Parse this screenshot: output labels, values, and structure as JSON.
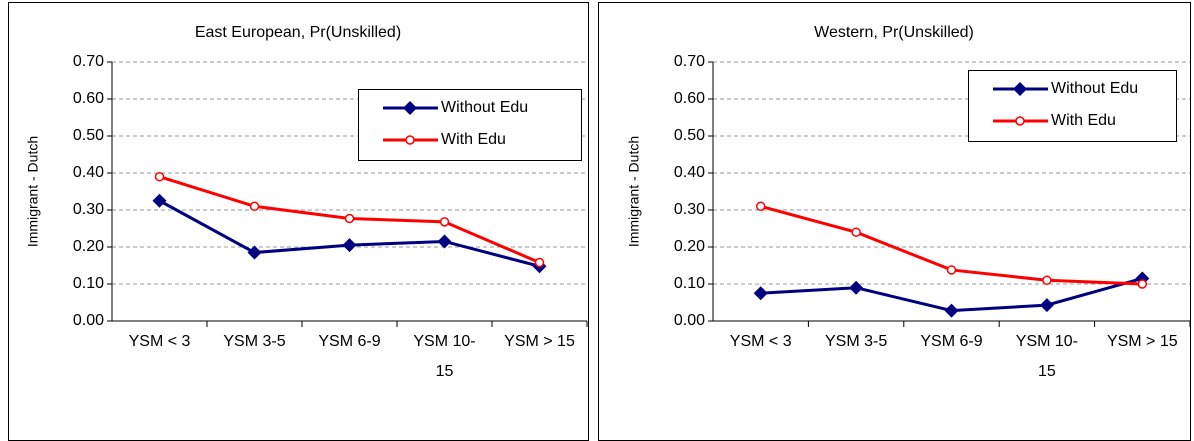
{
  "chart_data": [
    {
      "type": "line",
      "title": "East European, Pr(Unskilled)",
      "y_label": "Immigrant - Dutch",
      "categories": [
        "YSM < 3",
        "YSM 3-5",
        "YSM 6-9",
        "YSM 10-15",
        "YSM > 15"
      ],
      "series": [
        {
          "name": "Without Edu",
          "color": "#000080",
          "marker": "diamond",
          "values": [
            0.325,
            0.185,
            0.205,
            0.215,
            0.148
          ]
        },
        {
          "name": "With Edu",
          "color": "#ff0000",
          "marker": "circle",
          "values": [
            0.39,
            0.31,
            0.277,
            0.268,
            0.158
          ]
        }
      ],
      "ylim": [
        0,
        0.7
      ],
      "yticks": [
        {
          "value": 0,
          "label": "0.00"
        },
        {
          "value": 0.1,
          "label": "0.10"
        },
        {
          "value": 0.2,
          "label": "0.20"
        },
        {
          "value": 0.3,
          "label": "0.30"
        },
        {
          "value": 0.4,
          "label": "0.40"
        },
        {
          "value": 0.5,
          "label": "0.50"
        },
        {
          "value": 0.6,
          "label": "0.60"
        },
        {
          "value": 0.7,
          "label": "0.70"
        }
      ],
      "grid": true,
      "legend": "upper right"
    },
    {
      "type": "line",
      "title": "Western, Pr(Unskilled)",
      "y_label": "Immigrant - Dutch",
      "categories": [
        "YSM < 3",
        "YSM 3-5",
        "YSM 6-9",
        "YSM 10-15",
        "YSM > 15"
      ],
      "series": [
        {
          "name": "Without Edu",
          "color": "#000080",
          "marker": "diamond",
          "values": [
            0.075,
            0.09,
            0.028,
            0.043,
            0.115
          ]
        },
        {
          "name": "With Edu",
          "color": "#ff0000",
          "marker": "circle",
          "values": [
            0.31,
            0.24,
            0.138,
            0.11,
            0.1
          ]
        }
      ],
      "ylim": [
        0,
        0.7
      ],
      "yticks": [
        {
          "value": 0,
          "label": "0.00"
        },
        {
          "value": 0.1,
          "label": "0.10"
        },
        {
          "value": 0.2,
          "label": "0.20"
        },
        {
          "value": 0.3,
          "label": "0.30"
        },
        {
          "value": 0.4,
          "label": "0.40"
        },
        {
          "value": 0.5,
          "label": "0.50"
        },
        {
          "value": 0.6,
          "label": "0.60"
        },
        {
          "value": 0.7,
          "label": "0.70"
        }
      ],
      "grid": true,
      "legend": "upper right"
    }
  ]
}
